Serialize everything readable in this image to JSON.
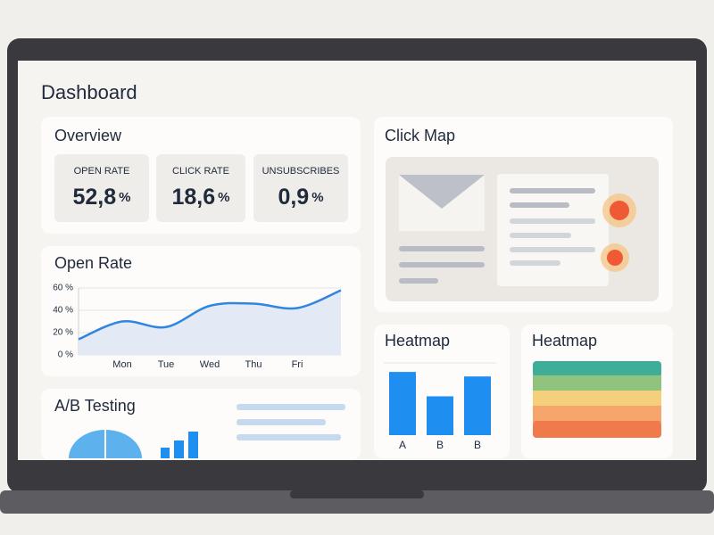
{
  "header": {
    "title": "Dashboard"
  },
  "overview": {
    "title": "Overview",
    "metrics": [
      {
        "label": "OPEN RATE",
        "value": "52,8",
        "unit": "%"
      },
      {
        "label": "CLICK RATE",
        "value": "18,6",
        "unit": "%"
      },
      {
        "label": "UNSUBSCRIBES",
        "value": "0,9",
        "unit": "%"
      }
    ]
  },
  "open_rate": {
    "title": "Open Rate",
    "chart_data": {
      "type": "line",
      "categories": [
        null,
        "Mon",
        "Tue",
        "Wed",
        "Thu",
        "Fri",
        null
      ],
      "values": [
        14,
        30,
        25,
        44,
        46,
        42,
        58
      ],
      "color": "#2f86e0",
      "ylim": [
        0,
        60
      ],
      "yticks": [
        {
          "value": 0,
          "label": "0 %"
        },
        {
          "value": 20,
          "label": "20 %"
        },
        {
          "value": 40,
          "label": "40 %"
        },
        {
          "value": 60,
          "label": "60 %"
        }
      ],
      "grid": true
    }
  },
  "ab_testing": {
    "title": "A/B Testing"
  },
  "click_map": {
    "title": "Click Map"
  },
  "heatmap_bars": {
    "title": "Heatmap",
    "chart_data": {
      "type": "bar",
      "categories": [
        "A",
        "B",
        "B"
      ],
      "values": [
        70,
        43,
        65
      ],
      "color": "#1e8ff0",
      "ylim": [
        0,
        80
      ]
    }
  },
  "heatmap_stripes": {
    "title": "Heatmap"
  }
}
